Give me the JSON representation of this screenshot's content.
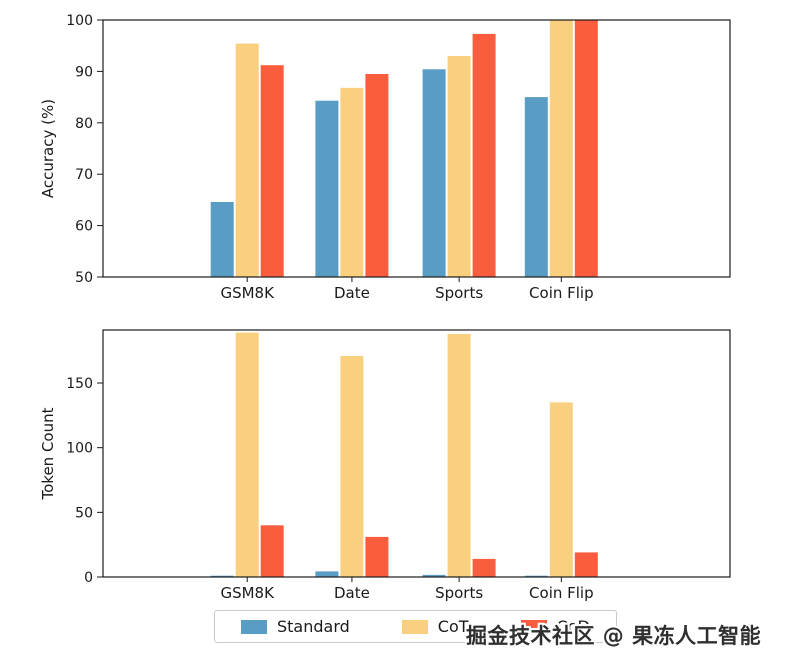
{
  "watermark": {
    "text": "掘金技术社区 @ 果冻人工智能"
  },
  "legend": {
    "items": [
      {
        "label": "Standard",
        "color": "#599CC4"
      },
      {
        "label": "CoT",
        "color": "#F9CF80"
      },
      {
        "label": "CoD",
        "color": "#F95D3E"
      }
    ]
  },
  "chart_data": [
    {
      "type": "bar",
      "name": "accuracy",
      "title": "",
      "xlabel": "",
      "ylabel": "Accuracy (%)",
      "categories": [
        "GSM8K",
        "Date",
        "Sports",
        "Coin Flip"
      ],
      "series": [
        {
          "name": "Standard",
          "color": "#599CC4",
          "values": [
            64.6,
            84.3,
            90.4,
            85.0
          ]
        },
        {
          "name": "CoT",
          "color": "#F9CF80",
          "values": [
            95.4,
            86.8,
            93.0,
            100.0
          ]
        },
        {
          "name": "CoD",
          "color": "#F95D3E",
          "values": [
            91.2,
            89.5,
            97.3,
            100.0
          ]
        }
      ],
      "ylim": [
        50,
        100
      ],
      "yticks": [
        50,
        60,
        70,
        80,
        90,
        100
      ],
      "grid": false,
      "legend_position": "bottom-outside-shared"
    },
    {
      "type": "bar",
      "name": "token-count",
      "title": "",
      "xlabel": "",
      "ylabel": "Token Count",
      "categories": [
        "GSM8K",
        "Date",
        "Sports",
        "Coin Flip"
      ],
      "series": [
        {
          "name": "Standard",
          "color": "#599CC4",
          "values": [
            1.0,
            4.3,
            1.6,
            1.0
          ]
        },
        {
          "name": "CoT",
          "color": "#F9CF80",
          "values": [
            189.0,
            171.0,
            188.0,
            135.0
          ]
        },
        {
          "name": "CoD",
          "color": "#F95D3E",
          "values": [
            40.0,
            31.0,
            14.0,
            19.0
          ]
        }
      ],
      "ylim": [
        0,
        191
      ],
      "yticks": [
        0,
        50,
        100,
        150
      ],
      "grid": false,
      "legend_position": "bottom-outside-shared"
    }
  ]
}
